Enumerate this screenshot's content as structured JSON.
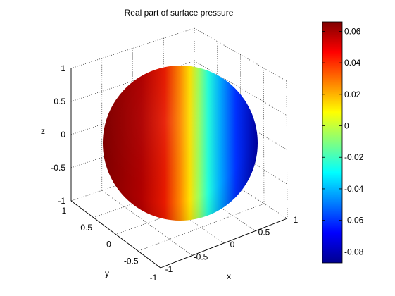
{
  "chart_data": {
    "type": "surface",
    "title": "Real part of surface pressure",
    "xlabel": "x",
    "ylabel": "y",
    "zlabel": "z",
    "axes": {
      "x": {
        "range": [
          -1,
          1
        ],
        "ticks": [
          "-1",
          "-0.5",
          "0",
          "0.5",
          "1"
        ]
      },
      "y": {
        "range": [
          -1,
          1
        ],
        "ticks": [
          "-1",
          "-0.5",
          "0",
          "0.5",
          "1"
        ]
      },
      "z": {
        "range": [
          -1,
          1
        ],
        "ticks": [
          "-1",
          "-0.5",
          "0",
          "0.5",
          "1"
        ]
      }
    },
    "grid": true,
    "box_style": "dotted",
    "colormap": "jet",
    "colorbar": {
      "range": [
        -0.087,
        0.066
      ],
      "ticks": [
        {
          "value": 0.06,
          "label": "0.06"
        },
        {
          "value": 0.04,
          "label": "0.04"
        },
        {
          "value": 0.02,
          "label": "0.02"
        },
        {
          "value": 0,
          "label": "0"
        },
        {
          "value": -0.02,
          "label": "-0.02"
        },
        {
          "value": -0.04,
          "label": "-0.04"
        },
        {
          "value": -0.06,
          "label": "-0.06"
        },
        {
          "value": -0.08,
          "label": "-0.08"
        }
      ]
    },
    "surface": {
      "shape": "unit sphere",
      "field_min": -0.087,
      "field_max": 0.066
    }
  }
}
